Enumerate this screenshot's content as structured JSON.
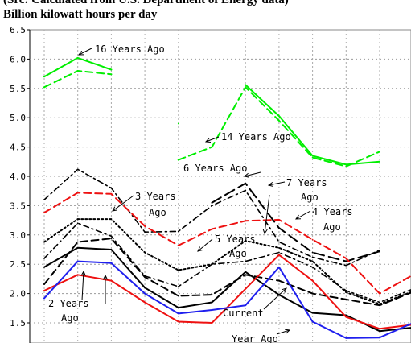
{
  "header": {
    "source_line": "(Src: Calculated from U.S. Department of Energy data)",
    "units_line": "Billion kilowatt hours per day"
  },
  "chart_data": {
    "type": "line",
    "title": "(Src: Calculated from U.S. Department of Energy data)",
    "ylabel": "Billion kilowatt hours per day",
    "xlabel": "",
    "ylim": [
      1.3,
      6.5
    ],
    "yticks": [
      "6.5",
      "6.0",
      "5.5",
      "5.0",
      "4.5",
      "4.0",
      "3.5",
      "3.0",
      "2.5",
      "2.0",
      "1.5"
    ],
    "grid": true,
    "x": [
      1,
      2,
      3,
      4,
      5,
      6,
      7,
      8,
      9,
      10,
      11,
      12
    ],
    "series": [
      {
        "name": "16 Years Ago",
        "color": "#00ee00",
        "dash": "solid",
        "width": 2,
        "values": [
          5.7,
          6.02,
          5.82,
          null,
          4.9,
          null,
          5.56,
          5.03,
          4.35,
          4.2,
          4.25,
          null
        ]
      },
      {
        "name": "14 Years Ago",
        "color": "#00ee00",
        "dash": "dashed",
        "width": 2,
        "values": [
          5.52,
          5.8,
          5.74,
          null,
          4.28,
          4.5,
          5.52,
          4.95,
          4.32,
          4.17,
          4.42,
          null
        ]
      },
      {
        "name": "6 Years Ago",
        "color": "#000000",
        "dash": "dashdot",
        "width": 1.6,
        "values": [
          3.6,
          4.12,
          3.8,
          3.05,
          3.06,
          3.5,
          3.76,
          2.88,
          2.62,
          2.48,
          2.74,
          null
        ]
      },
      {
        "name": "7 Years Ago",
        "color": "#000000",
        "dash": "longdash",
        "width": 2,
        "values": [
          null,
          null,
          null,
          null,
          null,
          3.55,
          3.88,
          3.12,
          2.7,
          2.55,
          2.72,
          null
        ]
      },
      {
        "name": "3 Years Ago",
        "color": "#ee1111",
        "dash": "dashed",
        "width": 2,
        "values": [
          3.38,
          3.72,
          3.7,
          3.15,
          2.82,
          3.1,
          3.24,
          3.26,
          2.92,
          2.6,
          2.0,
          2.32
        ]
      },
      {
        "name": "4 Years Ago",
        "color": "#000000",
        "dash": "dotted",
        "width": 2,
        "values": [
          2.88,
          3.27,
          3.27,
          2.7,
          2.4,
          2.5,
          2.9,
          2.78,
          2.55,
          2.02,
          1.82,
          2.04
        ]
      },
      {
        "name": "5 Years Ago",
        "color": "#000000",
        "dash": "dashdot",
        "width": 1.6,
        "values": [
          2.6,
          3.2,
          2.98,
          2.3,
          2.12,
          2.5,
          2.55,
          2.7,
          2.45,
          2.05,
          1.85,
          2.08
        ]
      },
      {
        "name": "2 Years Ago",
        "color": "#000000",
        "dash": "dashed",
        "width": 2,
        "values": [
          2.16,
          2.88,
          2.94,
          2.28,
          1.96,
          1.98,
          2.32,
          2.22,
          2.0,
          1.9,
          1.8,
          2.03
        ]
      },
      {
        "name": "Current",
        "color": "#000000",
        "dash": "solid",
        "width": 2,
        "values": [
          2.45,
          2.78,
          2.75,
          2.1,
          1.76,
          1.85,
          2.37,
          1.98,
          1.67,
          1.63,
          1.36,
          1.42
        ]
      },
      {
        "name": "Year Ago",
        "color": "#ee1111",
        "dash": "solid",
        "width": 2,
        "values": [
          2.05,
          2.32,
          2.22,
          1.85,
          1.52,
          1.5,
          2.08,
          2.66,
          2.22,
          1.6,
          1.4,
          1.47
        ]
      },
      {
        "name": "",
        "color": "#1f1fee",
        "dash": "solid",
        "width": 2,
        "values": [
          1.92,
          2.55,
          2.52,
          2.0,
          1.66,
          1.72,
          1.8,
          2.45,
          1.52,
          1.24,
          1.25,
          1.5
        ]
      }
    ],
    "annotations": [
      {
        "text": "16 Years Ago"
      },
      {
        "text": "14 Years Ago"
      },
      {
        "text": "6 Years Ago"
      },
      {
        "text": "7 Years"
      },
      {
        "text": "Ago"
      },
      {
        "text": "3 Years"
      },
      {
        "text": "Ago"
      },
      {
        "text": "4 Years"
      },
      {
        "text": "Ago"
      },
      {
        "text": "5 Years"
      },
      {
        "text": "Ago"
      },
      {
        "text": "2 Years"
      },
      {
        "text": "Ago"
      },
      {
        "text": "Current"
      },
      {
        "text": "Year Ago"
      }
    ]
  }
}
